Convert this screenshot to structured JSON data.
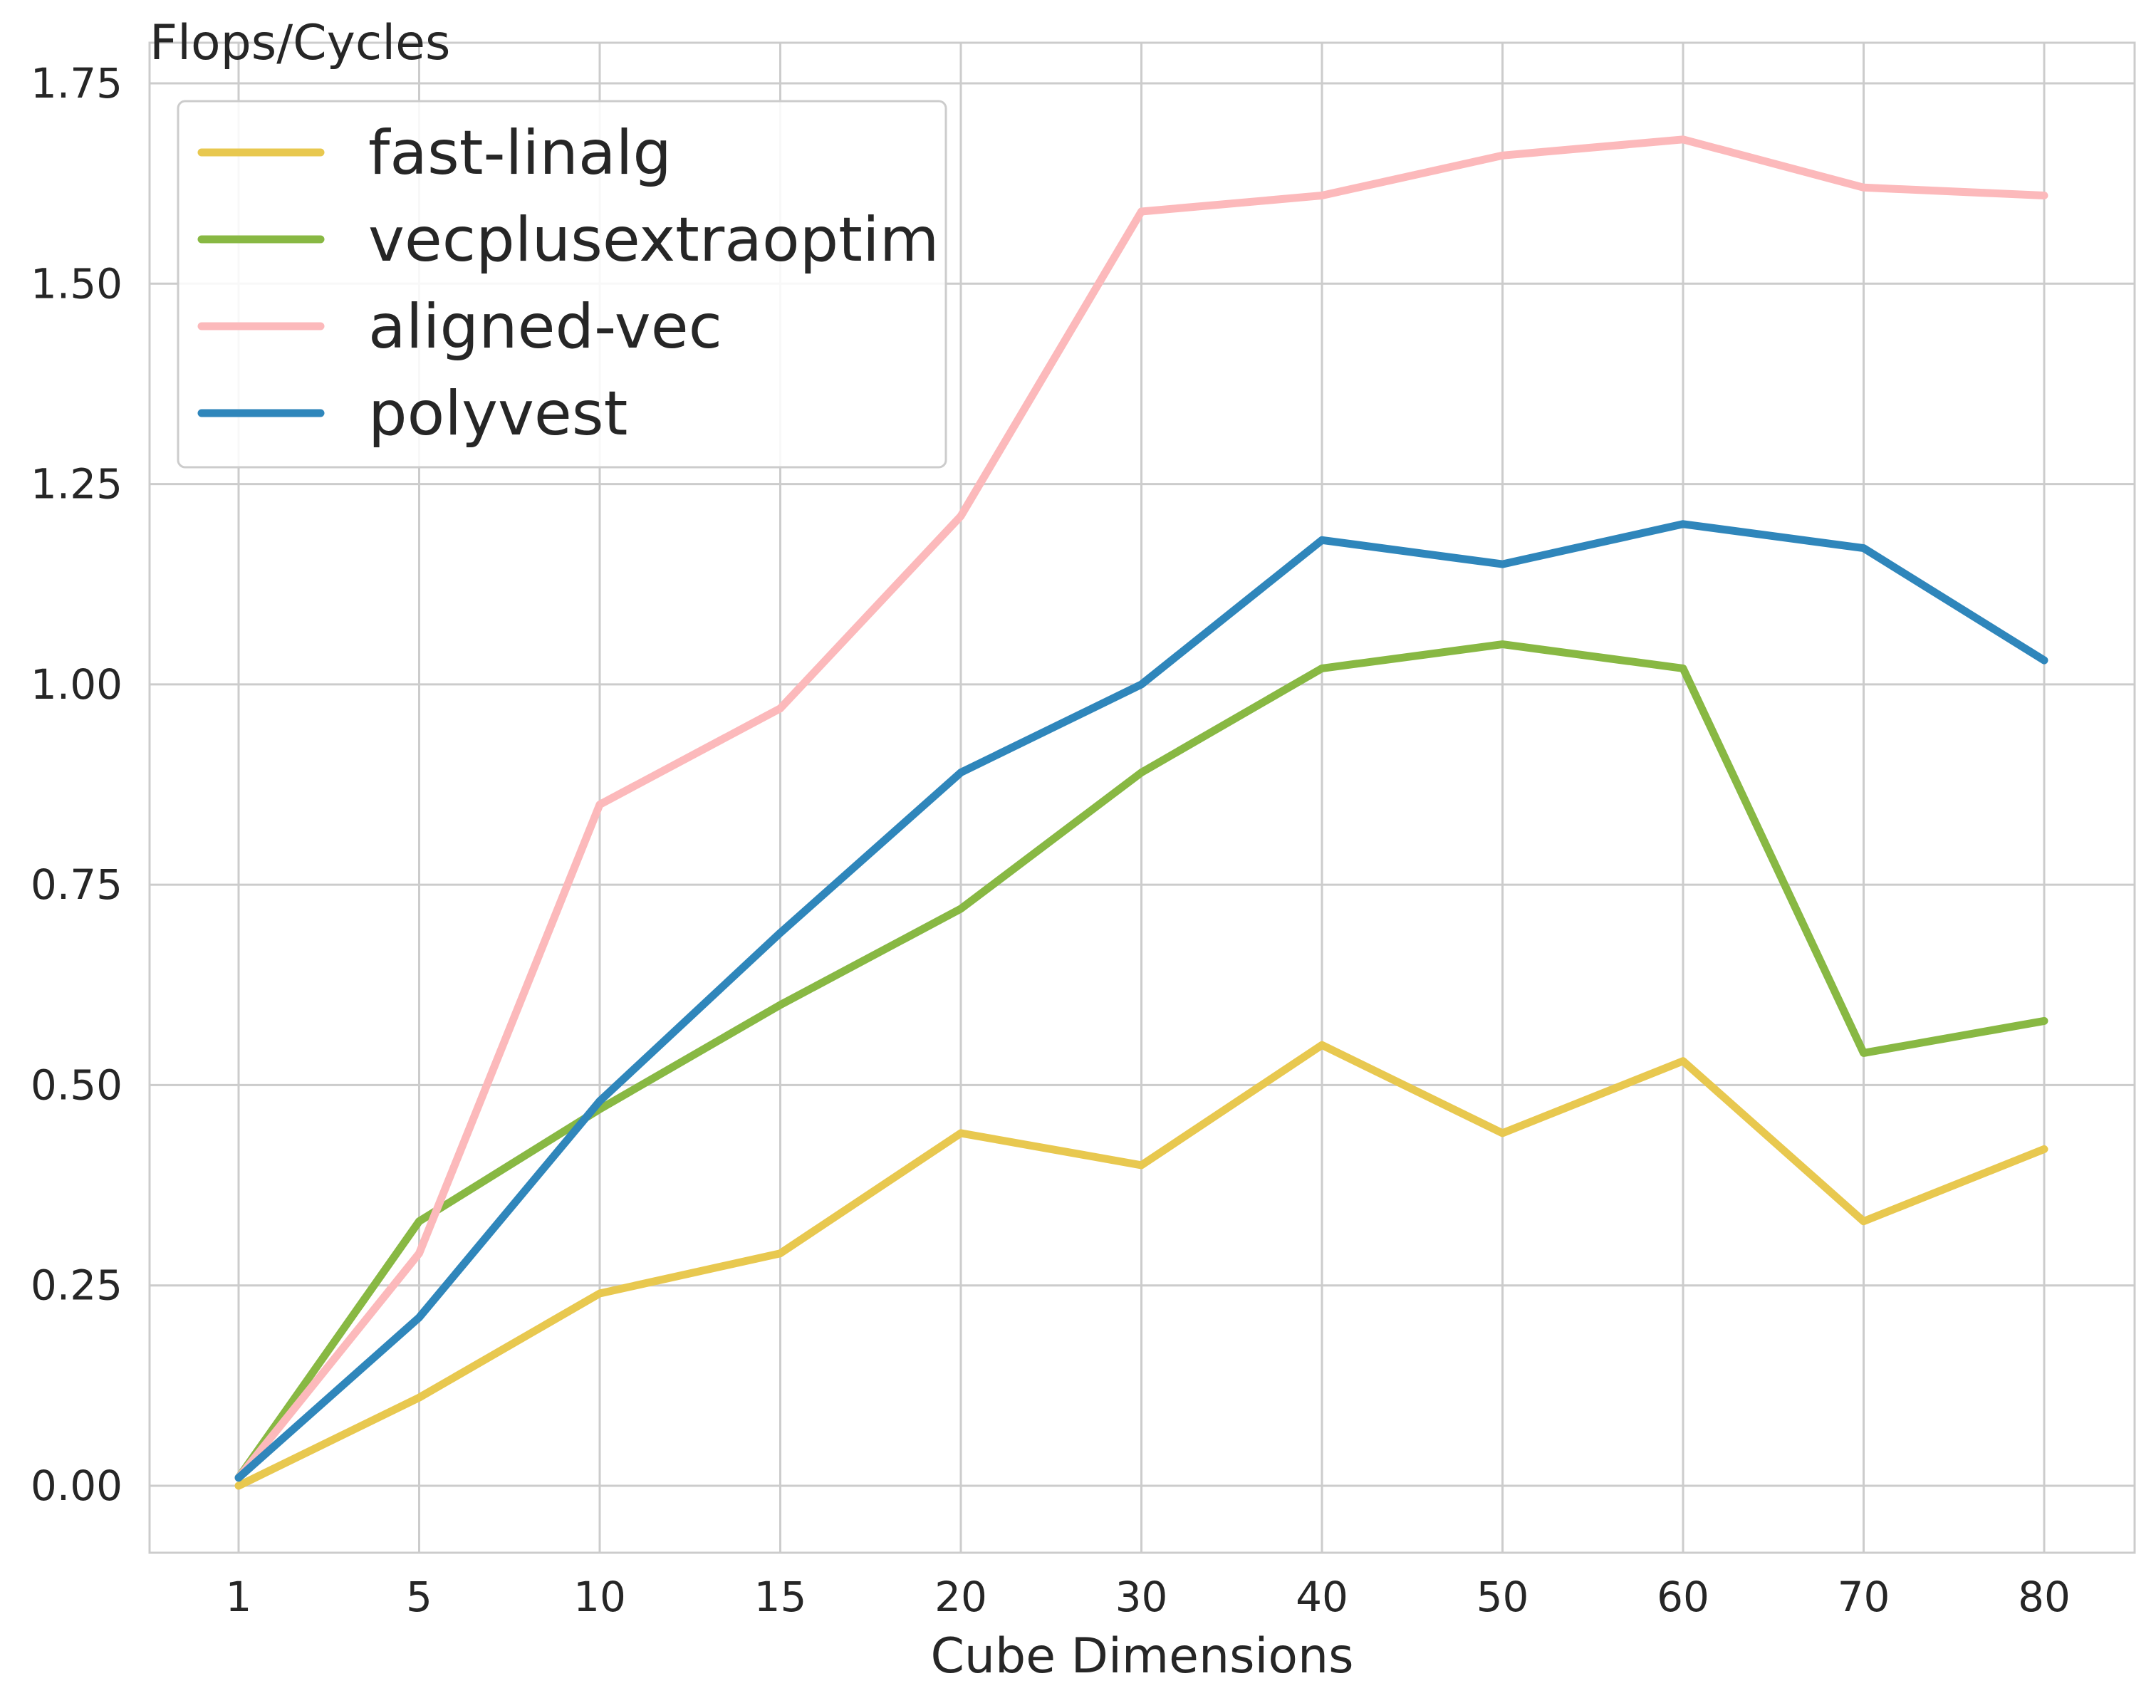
{
  "chart_data": {
    "type": "line",
    "title": "",
    "ylabel": "Flops/Cycles",
    "xlabel": "Cube Dimensions",
    "categories": [
      "1",
      "5",
      "10",
      "15",
      "20",
      "30",
      "40",
      "50",
      "60",
      "70",
      "80"
    ],
    "ylim": [
      -0.08,
      1.77
    ],
    "yticks": [
      "0.00",
      "0.25",
      "0.50",
      "0.75",
      "1.00",
      "1.25",
      "1.50",
      "1.75"
    ],
    "grid": true,
    "legend_position": "top-left",
    "series": [
      {
        "name": "fast-linalg",
        "color": "#e8c84f",
        "values": [
          0.0,
          0.11,
          0.24,
          0.29,
          0.44,
          0.4,
          0.55,
          0.44,
          0.53,
          0.33,
          0.42
        ]
      },
      {
        "name": "vecplusextraoptim",
        "color": "#88b843",
        "values": [
          0.01,
          0.33,
          0.47,
          0.6,
          0.72,
          0.89,
          1.02,
          1.05,
          1.02,
          0.54,
          0.58
        ]
      },
      {
        "name": "aligned-vec",
        "color": "#fcb9bb",
        "values": [
          0.01,
          0.29,
          0.85,
          0.97,
          1.21,
          1.59,
          1.61,
          1.66,
          1.68,
          1.62,
          1.61
        ]
      },
      {
        "name": "polyvest",
        "color": "#2f86bb",
        "values": [
          0.01,
          0.21,
          0.48,
          0.69,
          0.89,
          1.0,
          1.18,
          1.15,
          1.2,
          1.17,
          1.03
        ]
      }
    ]
  }
}
